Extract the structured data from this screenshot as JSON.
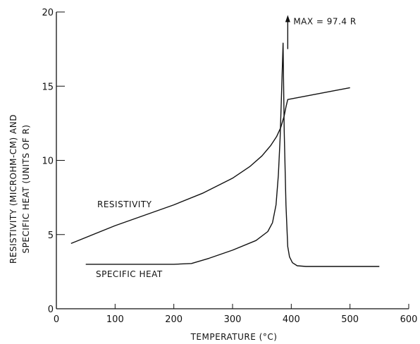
{
  "chart_data": {
    "type": "line",
    "title": "",
    "xlabel": "TEMPERATURE (°C)",
    "ylabel_line1": "RESISTIVITY (MICROHM-CM) AND",
    "ylabel_line2": "SPECIFIC HEAT (UNITS OF R)",
    "xlim": [
      0,
      600
    ],
    "ylim": [
      0,
      20
    ],
    "x_ticks": [
      0,
      100,
      200,
      300,
      400,
      500,
      600
    ],
    "y_ticks": [
      0,
      5,
      10,
      15,
      20
    ],
    "x_tick_labels": [
      "0",
      "100",
      "200",
      "300",
      "400",
      "500",
      "600"
    ],
    "y_tick_labels": [
      "0",
      "5",
      "10",
      "15",
      "20"
    ],
    "grid": false,
    "series": [
      {
        "name": "RESISTIVITY",
        "points": [
          [
            25,
            4.4
          ],
          [
            100,
            5.6
          ],
          [
            150,
            6.3
          ],
          [
            200,
            7.0
          ],
          [
            250,
            7.8
          ],
          [
            300,
            8.8
          ],
          [
            330,
            9.6
          ],
          [
            350,
            10.3
          ],
          [
            365,
            11.0
          ],
          [
            375,
            11.6
          ],
          [
            382,
            12.2
          ],
          [
            388,
            13.0
          ],
          [
            391,
            13.6
          ],
          [
            394,
            14.1
          ],
          [
            500,
            14.9
          ]
        ]
      },
      {
        "name": "SPECIFIC HEAT",
        "points": [
          [
            50,
            3.0
          ],
          [
            100,
            3.0
          ],
          [
            150,
            3.0
          ],
          [
            200,
            3.0
          ],
          [
            230,
            3.05
          ],
          [
            260,
            3.4
          ],
          [
            300,
            3.95
          ],
          [
            340,
            4.6
          ],
          [
            360,
            5.2
          ],
          [
            368,
            5.8
          ],
          [
            374,
            7.0
          ],
          [
            378,
            9.0
          ],
          [
            381,
            11.5
          ],
          [
            383,
            14.0
          ],
          [
            385,
            16.5
          ],
          [
            386,
            17.9
          ],
          [
            388,
            12.0
          ],
          [
            391,
            7.0
          ],
          [
            394,
            4.2
          ],
          [
            397,
            3.5
          ],
          [
            402,
            3.1
          ],
          [
            410,
            2.9
          ],
          [
            425,
            2.85
          ],
          [
            550,
            2.85
          ]
        ]
      }
    ],
    "peak_marker": {
      "x": 394,
      "y_from": 17.5,
      "y_to": 19.7
    },
    "annotations": {
      "max_label": "MAX = 97.4 R",
      "resistivity_label": "RESISTIVITY",
      "specific_heat_label": "SPECIFIC HEAT"
    }
  }
}
